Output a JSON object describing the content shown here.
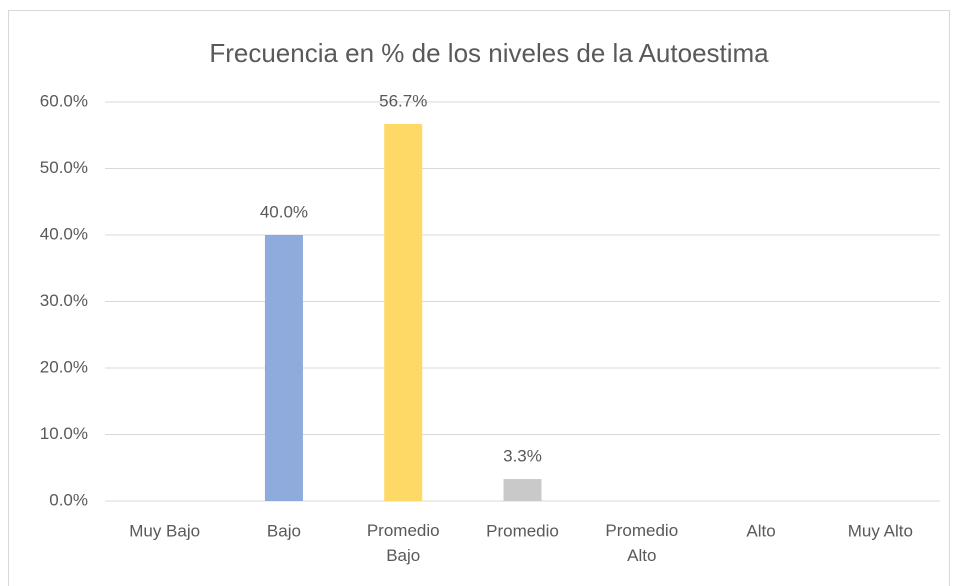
{
  "chart_data": {
    "type": "bar",
    "title": "Frecuencia en % de los niveles de la Autoestima",
    "categories": [
      "Muy Bajo",
      "Bajo",
      "Promedio Bajo",
      "Promedio",
      "Promedio Alto",
      "Alto",
      "Muy Alto"
    ],
    "values": [
      0,
      40.0,
      56.7,
      3.3,
      0,
      0,
      0
    ],
    "value_labels": [
      null,
      "40.0%",
      "56.7%",
      "3.3%",
      null,
      null,
      null
    ],
    "colors": [
      "#f4b183",
      "#8faadc",
      "#ffd966",
      "#c9c9c9",
      "#a9d18e",
      "#9dc3e6",
      "#f8cbad"
    ],
    "ylim": [
      0,
      60
    ],
    "yticks": [
      {
        "value": 0,
        "label": "0.0%"
      },
      {
        "value": 10,
        "label": "10.0%"
      },
      {
        "value": 20,
        "label": "20.0%"
      },
      {
        "value": 30,
        "label": "30.0%"
      },
      {
        "value": 40,
        "label": "40.0%"
      },
      {
        "value": 50,
        "label": "50.0%"
      },
      {
        "value": 60,
        "label": "60.0%"
      }
    ],
    "grid": true
  }
}
